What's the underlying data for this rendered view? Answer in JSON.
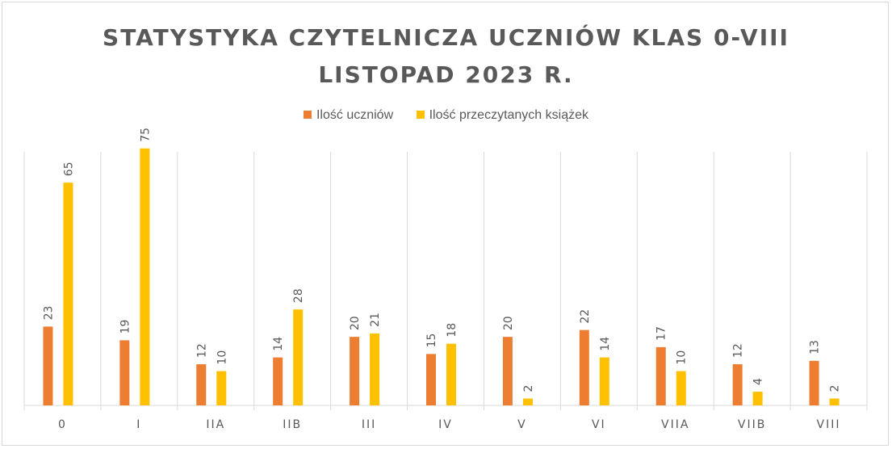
{
  "chart_data": {
    "type": "bar",
    "title_line1": "STATYSTYKA CZYTELNICZA UCZNIÓW KLAS 0-VIII",
    "title_line2": "LISTOPAD 2023 R.",
    "categories": [
      "0",
      "I",
      "IIA",
      "IIB",
      "III",
      "IV",
      "V",
      "VI",
      "VIIA",
      "VIIB",
      "VIII"
    ],
    "series": [
      {
        "name": "Ilość uczniów",
        "color": "#ed7d31",
        "values": [
          23,
          19,
          12,
          14,
          20,
          15,
          20,
          22,
          17,
          12,
          13
        ]
      },
      {
        "name": "Ilość przeczytanych książek",
        "color": "#ffc000",
        "values": [
          65,
          75,
          10,
          28,
          21,
          18,
          2,
          14,
          10,
          4,
          2
        ]
      }
    ],
    "ylim": [
      0,
      75
    ],
    "grid": "vertical category separators",
    "legend_position": "top",
    "data_labels": "rotated, above bars"
  }
}
